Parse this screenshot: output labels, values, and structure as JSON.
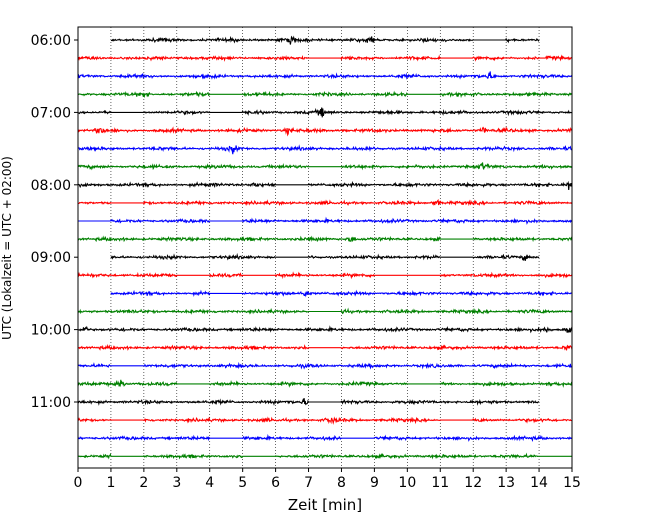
{
  "chart_data": {
    "type": "line",
    "title": "",
    "xlabel": "Zeit  [min]",
    "ylabel": "UTC (Lokalzeit = UTC + 02:00)",
    "xlim": [
      0,
      15
    ],
    "x_ticks": [
      "0",
      "1",
      "2",
      "3",
      "4",
      "5",
      "6",
      "7",
      "8",
      "9",
      "10",
      "11",
      "12",
      "13",
      "14",
      "15"
    ],
    "y_ticks": [
      "06:00",
      "07:00",
      "08:00",
      "09:00",
      "10:00",
      "11:00"
    ],
    "grid": "x-dotted",
    "trace_colors": [
      "#000000",
      "#ff0000",
      "#0000ff",
      "#008000"
    ],
    "trace_rows": [
      {
        "start": "06:00",
        "data_from": 1.0,
        "data_to": 14.0,
        "gaps": [
          [
            12.0,
            13.0
          ]
        ],
        "events": [
          6.5,
          8.9
        ]
      },
      {
        "start": "06:15",
        "data_from": 0.0,
        "data_to": 15.0,
        "gaps": [
          [
            7.0,
            8.0
          ],
          [
            11.0,
            12.0
          ],
          [
            14.0,
            14.2
          ]
        ],
        "events": [
          11.2
        ]
      },
      {
        "start": "06:30",
        "data_from": 0.0,
        "data_to": 15.0,
        "gaps": [],
        "events": [
          12.5
        ]
      },
      {
        "start": "06:45",
        "data_from": 0.0,
        "data_to": 15.0,
        "gaps": [
          [
            4.0,
            5.0
          ],
          [
            10.0,
            11.0
          ]
        ],
        "events": [
          2.0
        ]
      },
      {
        "start": "07:00",
        "data_from": 0.0,
        "data_to": 15.0,
        "gaps": [
          [
            1.0,
            2.0
          ],
          [
            4.0,
            5.0
          ]
        ],
        "events": [
          7.4
        ]
      },
      {
        "start": "07:15",
        "data_from": 0.0,
        "data_to": 15.0,
        "gaps": [],
        "events": [
          0.65,
          6.4,
          12.3
        ]
      },
      {
        "start": "07:30",
        "data_from": 0.0,
        "data_to": 15.0,
        "gaps": [],
        "events": [
          4.7
        ]
      },
      {
        "start": "07:45",
        "data_from": 0.0,
        "data_to": 15.0,
        "gaps": [
          [
            7.0,
            8.0
          ]
        ],
        "events": [
          12.3
        ]
      },
      {
        "start": "08:00",
        "data_from": 0.0,
        "data_to": 15.0,
        "gaps": [
          [
            6.0,
            7.0
          ]
        ],
        "events": [
          5.4,
          14.9
        ]
      },
      {
        "start": "08:15",
        "data_from": 0.0,
        "data_to": 15.0,
        "gaps": [
          [
            1.0,
            2.0
          ]
        ],
        "events": [
          10.9
        ]
      },
      {
        "start": "08:30",
        "data_from": 0.0,
        "data_to": 15.0,
        "gaps": [
          [
            0.0,
            1.0
          ],
          [
            4.0,
            5.0
          ]
        ],
        "events": []
      },
      {
        "start": "08:45",
        "data_from": 0.0,
        "data_to": 15.0,
        "gaps": [
          [
            11.0,
            12.0
          ]
        ],
        "events": [
          8.3
        ]
      },
      {
        "start": "09:00",
        "data_from": 1.0,
        "data_to": 14.0,
        "gaps": [
          [
            6.0,
            7.0
          ],
          [
            11.0,
            12.0
          ]
        ],
        "events": [
          13.6
        ]
      },
      {
        "start": "09:15",
        "data_from": 0.0,
        "data_to": 15.0,
        "gaps": [
          [
            3.0,
            4.0
          ],
          [
            5.0,
            6.0
          ],
          [
            9.0,
            10.0
          ],
          [
            10.0,
            11.0
          ]
        ],
        "events": []
      },
      {
        "start": "09:30",
        "data_from": 1.0,
        "data_to": 15.0,
        "gaps": [
          [
            4.0,
            5.0
          ]
        ],
        "events": [
          6.9
        ]
      },
      {
        "start": "09:45",
        "data_from": 0.0,
        "data_to": 15.0,
        "gaps": [
          [
            7.0,
            8.0
          ]
        ],
        "events": [
          8.0
        ]
      },
      {
        "start": "10:00",
        "data_from": 0.0,
        "data_to": 15.0,
        "gaps": [],
        "events": [
          0.2,
          14.2,
          14.9
        ]
      },
      {
        "start": "10:15",
        "data_from": 0.0,
        "data_to": 15.0,
        "gaps": [
          [
            7.0,
            8.0
          ]
        ],
        "events": [
          14.9
        ]
      },
      {
        "start": "10:30",
        "data_from": 0.0,
        "data_to": 15.0,
        "gaps": [
          [
            1.0,
            2.0
          ]
        ],
        "events": []
      },
      {
        "start": "10:45",
        "data_from": 0.0,
        "data_to": 15.0,
        "gaps": [
          [
            3.0,
            4.0
          ],
          [
            10.0,
            11.0
          ]
        ],
        "events": [
          1.3
        ]
      },
      {
        "start": "11:00",
        "data_from": 0.0,
        "data_to": 14.0,
        "gaps": [
          [
            7.0,
            8.0
          ]
        ],
        "events": [
          6.9
        ]
      },
      {
        "start": "11:15",
        "data_from": 0.0,
        "data_to": 15.0,
        "gaps": [
          [
            1.0,
            2.0
          ],
          [
            11.0,
            12.0
          ]
        ],
        "events": [
          7.7
        ]
      },
      {
        "start": "11:30",
        "data_from": 0.0,
        "data_to": 15.0,
        "gaps": [
          [
            4.0,
            5.0
          ],
          [
            8.0,
            9.0
          ]
        ],
        "events": []
      },
      {
        "start": "11:45",
        "data_from": 0.0,
        "data_to": 15.0,
        "gaps": [
          [
            1.0,
            2.0
          ],
          [
            5.0,
            6.0
          ],
          [
            14.0,
            15.0
          ]
        ],
        "events": []
      }
    ]
  }
}
